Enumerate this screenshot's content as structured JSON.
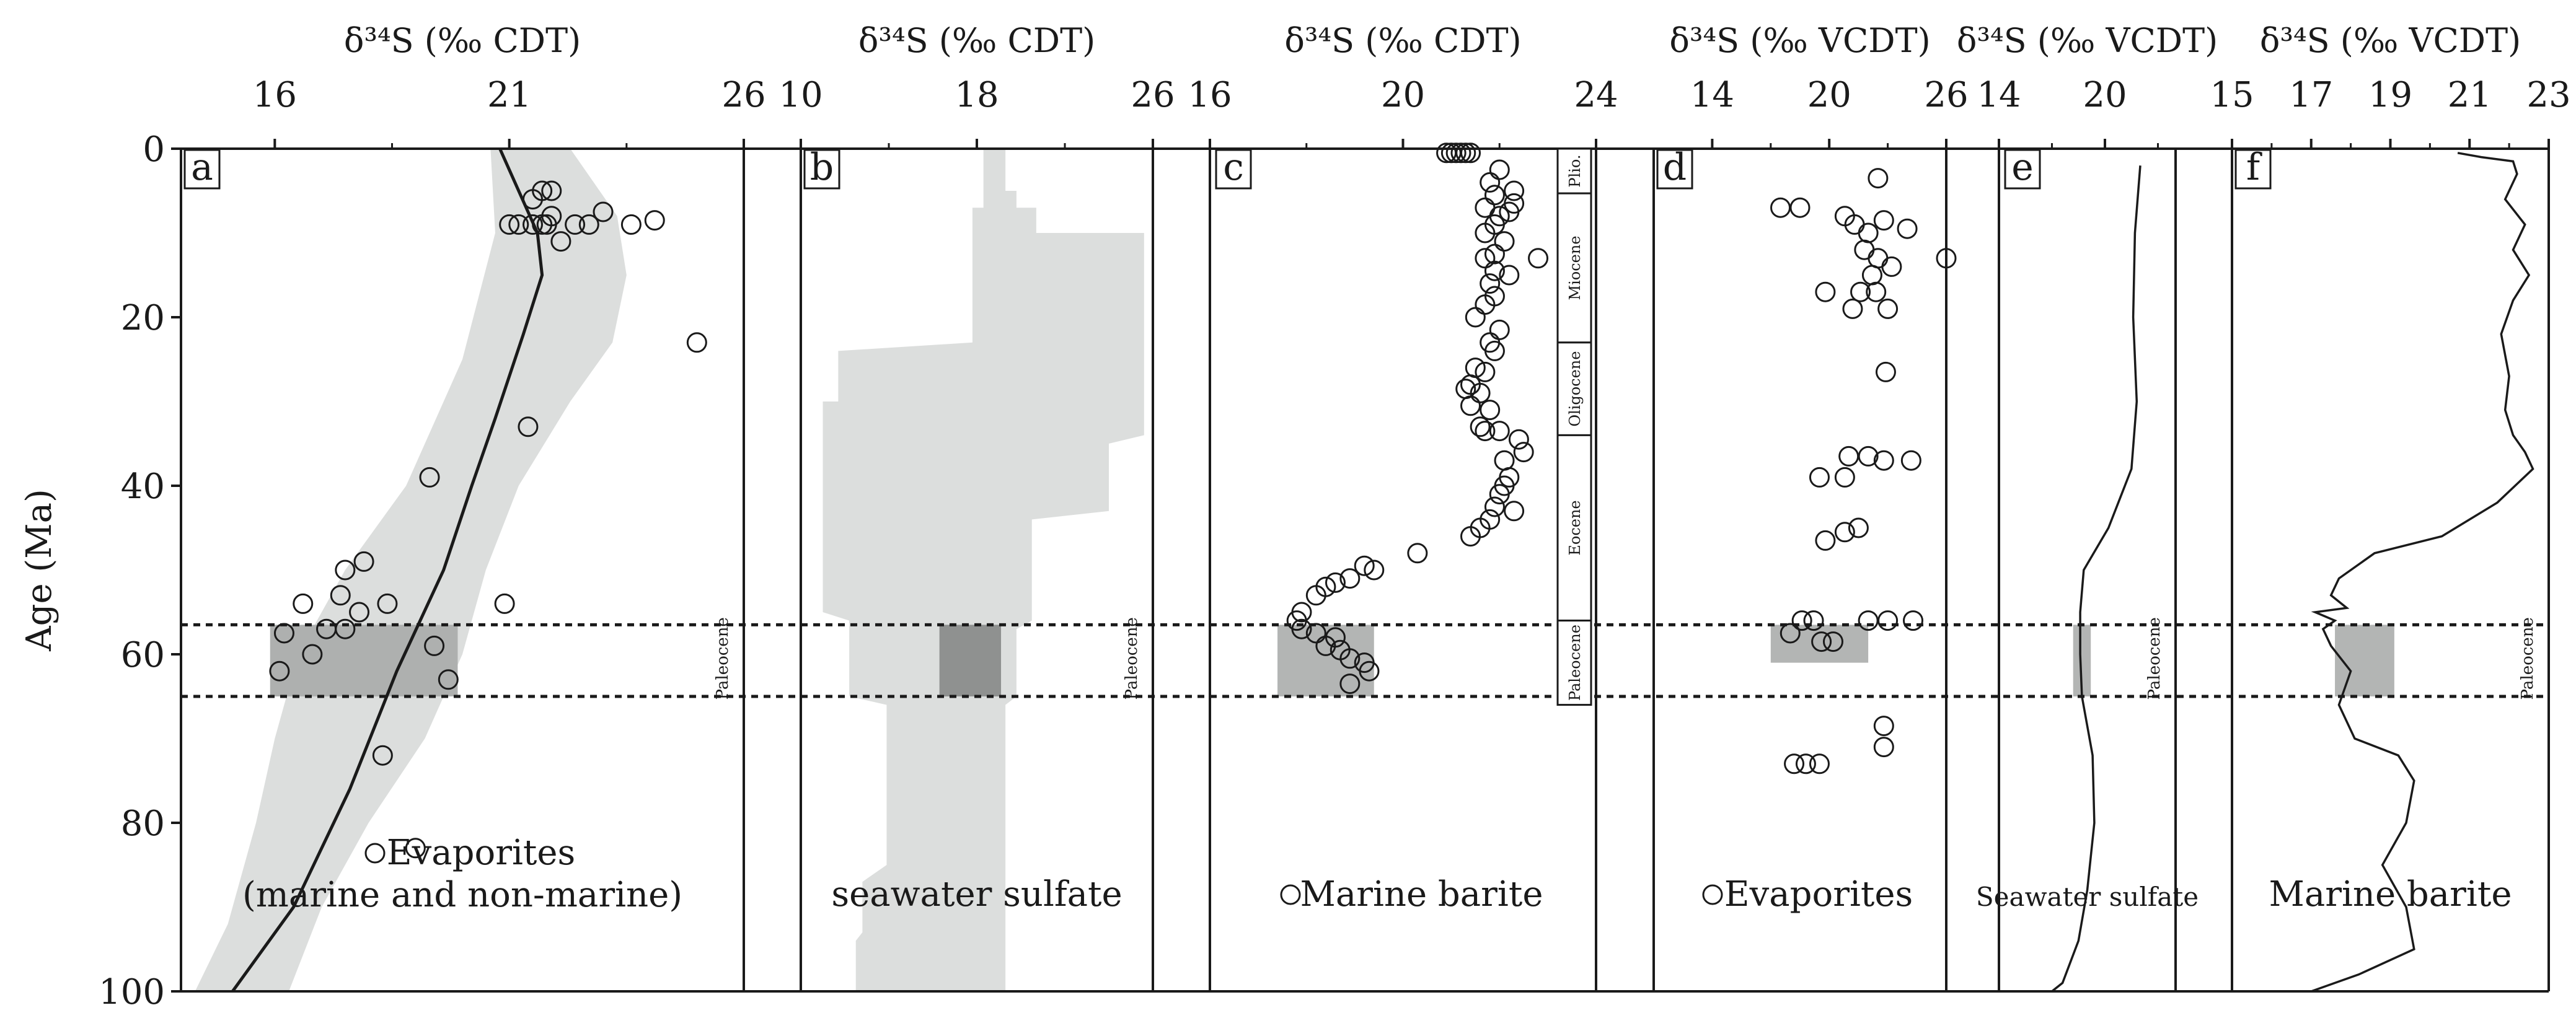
{
  "y_axis": {
    "label": "Age (Ma)",
    "ticks": [
      0,
      20,
      40,
      60,
      80,
      100
    ],
    "range": [
      0,
      100
    ],
    "inverted": true
  },
  "boundary_lines": [
    56.5,
    65
  ],
  "colors": {
    "envelope": "#dcdedd",
    "highlight_a": "#aeb0af",
    "highlight_b": "#8f9190",
    "highlight_cdef": "#b3b5b4",
    "line": "#1a1a1a",
    "dotted": "#1a1a1a"
  },
  "chart_data": [
    {
      "panel": "a",
      "type": "scatter",
      "header": "δ³⁴S (‰ CDT)",
      "xlim": [
        14,
        26
      ],
      "x_ticks": [
        16,
        21,
        26
      ],
      "caption_lines": [
        "Evaporites",
        "(marine and non-marine)"
      ],
      "caption_marker": "circle",
      "side_label": "Paleocene",
      "highlight": {
        "x": [
          15.9,
          19.9
        ],
        "y": [
          56.5,
          65
        ]
      },
      "envelope": {
        "left": [
          [
            20.6,
            0
          ],
          [
            20.7,
            10
          ],
          [
            20.0,
            25
          ],
          [
            18.8,
            40
          ],
          [
            17.5,
            50
          ],
          [
            16.5,
            60
          ],
          [
            16.0,
            70
          ],
          [
            15.6,
            80
          ],
          [
            15.0,
            92
          ],
          [
            14.3,
            100
          ]
        ],
        "right": [
          [
            22.3,
            0
          ],
          [
            23.3,
            8
          ],
          [
            23.5,
            15
          ],
          [
            23.2,
            23
          ],
          [
            22.3,
            30
          ],
          [
            21.2,
            40
          ],
          [
            20.5,
            50
          ],
          [
            20.0,
            60
          ],
          [
            19.2,
            70
          ],
          [
            18.0,
            80
          ],
          [
            17.0,
            90
          ],
          [
            16.3,
            100
          ]
        ]
      },
      "line": [
        [
          20.8,
          0
        ],
        [
          21.6,
          10
        ],
        [
          21.7,
          15
        ],
        [
          21.3,
          22
        ],
        [
          20.7,
          32
        ],
        [
          20.2,
          40
        ],
        [
          19.6,
          50
        ],
        [
          18.6,
          62
        ],
        [
          17.6,
          76
        ],
        [
          16.4,
          90
        ],
        [
          15.1,
          100
        ]
      ],
      "points": [
        [
          21.7,
          5
        ],
        [
          21.9,
          5
        ],
        [
          21.5,
          6
        ],
        [
          21.9,
          8
        ],
        [
          22.4,
          9
        ],
        [
          22.7,
          9
        ],
        [
          23.0,
          7.5
        ],
        [
          23.6,
          9
        ],
        [
          24.1,
          8.5
        ],
        [
          21.0,
          9
        ],
        [
          21.2,
          9
        ],
        [
          21.5,
          9
        ],
        [
          21.7,
          9
        ],
        [
          21.8,
          9
        ],
        [
          22.1,
          11
        ],
        [
          25.0,
          23
        ],
        [
          21.4,
          33
        ],
        [
          19.3,
          39
        ],
        [
          20.9,
          54
        ],
        [
          17.5,
          50
        ],
        [
          17.9,
          49
        ],
        [
          17.4,
          53
        ],
        [
          18.4,
          54
        ],
        [
          16.6,
          54
        ],
        [
          17.8,
          55
        ],
        [
          17.1,
          57
        ],
        [
          16.2,
          57.5
        ],
        [
          17.5,
          57
        ],
        [
          16.8,
          60
        ],
        [
          19.4,
          59
        ],
        [
          16.1,
          62
        ],
        [
          19.7,
          63
        ],
        [
          18.3,
          72
        ],
        [
          19.0,
          83
        ]
      ]
    },
    {
      "panel": "b",
      "type": "area",
      "header": "δ³⁴S (‰ CDT)",
      "xlim": [
        10,
        26
      ],
      "x_ticks": [
        10,
        18,
        26
      ],
      "caption_lines": [
        "seawater sulfate"
      ],
      "side_label": "Paleocene",
      "highlight": {
        "x": [
          16.3,
          19.1
        ],
        "y": [
          56.5,
          65
        ]
      },
      "envelope": {
        "left": [
          [
            18.3,
            0
          ],
          [
            18.3,
            5
          ],
          [
            18.3,
            7
          ],
          [
            17.8,
            7
          ],
          [
            17.8,
            9
          ],
          [
            17.8,
            23
          ],
          [
            11.7,
            24
          ],
          [
            11.7,
            30
          ],
          [
            11.0,
            30
          ],
          [
            11.0,
            55
          ],
          [
            12.2,
            56
          ],
          [
            12.2,
            65
          ],
          [
            13.9,
            66
          ],
          [
            13.9,
            85
          ],
          [
            12.8,
            87
          ],
          [
            12.8,
            93
          ],
          [
            12.5,
            94
          ],
          [
            12.5,
            100
          ]
        ],
        "right": [
          [
            19.3,
            0
          ],
          [
            19.3,
            5
          ],
          [
            19.8,
            5
          ],
          [
            19.8,
            7
          ],
          [
            20.7,
            7
          ],
          [
            20.7,
            10
          ],
          [
            25.6,
            10
          ],
          [
            25.6,
            34
          ],
          [
            24.0,
            35
          ],
          [
            24.0,
            43
          ],
          [
            20.5,
            44
          ],
          [
            20.5,
            53
          ],
          [
            20.5,
            56
          ],
          [
            19.8,
            57
          ],
          [
            19.8,
            65
          ],
          [
            19.3,
            66
          ],
          [
            19.3,
            100
          ]
        ]
      }
    },
    {
      "panel": "c",
      "type": "scatter",
      "header": "δ³⁴S (‰ CDT)",
      "xlim": [
        16,
        24
      ],
      "x_ticks": [
        16,
        20,
        24
      ],
      "caption_lines": [
        "Marine barite"
      ],
      "caption_marker": "circle",
      "epochs": [
        {
          "name": "Plio.",
          "top": 0,
          "bottom": 5.3
        },
        {
          "name": "Miocene",
          "top": 5.3,
          "bottom": 23
        },
        {
          "name": "Oligocene",
          "top": 23,
          "bottom": 34
        },
        {
          "name": "Eocene",
          "top": 34,
          "bottom": 56
        },
        {
          "name": "Paleocene",
          "top": 56,
          "bottom": 66
        }
      ],
      "highlight": {
        "x": [
          17.4,
          19.4
        ],
        "y": [
          56.5,
          65
        ]
      },
      "points": [
        [
          20.9,
          0.5
        ],
        [
          21.0,
          0.5
        ],
        [
          21.1,
          0.5
        ],
        [
          21.2,
          0.5
        ],
        [
          21.3,
          0.5
        ],
        [
          21.4,
          0.5
        ],
        [
          22.0,
          2.5
        ],
        [
          21.8,
          4
        ],
        [
          22.3,
          5
        ],
        [
          21.9,
          5.5
        ],
        [
          22.3,
          6.5
        ],
        [
          21.7,
          7
        ],
        [
          22.0,
          8
        ],
        [
          22.2,
          7.5
        ],
        [
          21.9,
          9
        ],
        [
          21.7,
          10
        ],
        [
          22.1,
          11
        ],
        [
          22.8,
          13
        ],
        [
          21.9,
          12.5
        ],
        [
          21.7,
          13
        ],
        [
          21.9,
          14.5
        ],
        [
          22.2,
          15
        ],
        [
          21.8,
          16
        ],
        [
          21.9,
          17.5
        ],
        [
          21.7,
          18.5
        ],
        [
          21.5,
          20
        ],
        [
          22.0,
          21.5
        ],
        [
          21.8,
          23
        ],
        [
          21.9,
          24
        ],
        [
          21.5,
          26
        ],
        [
          21.7,
          26.5
        ],
        [
          21.4,
          28
        ],
        [
          21.3,
          28.5
        ],
        [
          21.6,
          29
        ],
        [
          21.4,
          30.5
        ],
        [
          21.8,
          31
        ],
        [
          21.6,
          33
        ],
        [
          21.7,
          33.5
        ],
        [
          22.0,
          33.5
        ],
        [
          22.4,
          34.5
        ],
        [
          22.5,
          36
        ],
        [
          22.1,
          37
        ],
        [
          22.2,
          39
        ],
        [
          22.1,
          40
        ],
        [
          22.0,
          41
        ],
        [
          21.9,
          42.5
        ],
        [
          22.3,
          43
        ],
        [
          21.8,
          44
        ],
        [
          21.6,
          45
        ],
        [
          21.4,
          46
        ],
        [
          20.3,
          48
        ],
        [
          19.2,
          49.5
        ],
        [
          19.4,
          50
        ],
        [
          18.9,
          51
        ],
        [
          18.6,
          51.5
        ],
        [
          18.4,
          52
        ],
        [
          18.2,
          53
        ],
        [
          17.9,
          55
        ],
        [
          17.8,
          56
        ],
        [
          17.9,
          57
        ],
        [
          18.2,
          57.5
        ],
        [
          18.6,
          58
        ],
        [
          18.4,
          59
        ],
        [
          18.7,
          59.5
        ],
        [
          18.9,
          60.5
        ],
        [
          19.2,
          61
        ],
        [
          19.3,
          62
        ],
        [
          18.9,
          63.5
        ]
      ]
    },
    {
      "panel": "d",
      "type": "scatter",
      "header": "δ³⁴S (‰ VCDT)",
      "xlim": [
        11,
        26
      ],
      "x_ticks": [
        14,
        20,
        26
      ],
      "caption_lines": [
        "Evaporites"
      ],
      "caption_marker": "circle",
      "highlight": {
        "x": [
          17.0,
          22.0
        ],
        "y": [
          56.5,
          61
        ]
      },
      "points": [
        [
          22.5,
          3.5
        ],
        [
          17.5,
          7
        ],
        [
          18.5,
          7
        ],
        [
          20.8,
          8
        ],
        [
          22.8,
          8.5
        ],
        [
          21.3,
          9
        ],
        [
          24.0,
          9.5
        ],
        [
          22.0,
          10
        ],
        [
          21.8,
          12
        ],
        [
          22.5,
          13
        ],
        [
          23.2,
          14
        ],
        [
          22.2,
          15
        ],
        [
          21.6,
          17
        ],
        [
          22.4,
          17
        ],
        [
          19.8,
          17
        ],
        [
          23.0,
          19
        ],
        [
          21.2,
          19
        ],
        [
          26.0,
          13
        ],
        [
          22.9,
          26.5
        ],
        [
          21.0,
          36.5
        ],
        [
          22.0,
          36.5
        ],
        [
          22.8,
          37
        ],
        [
          24.2,
          37
        ],
        [
          19.5,
          39
        ],
        [
          20.8,
          39
        ],
        [
          21.5,
          45
        ],
        [
          20.8,
          45.5
        ],
        [
          19.8,
          46.5
        ],
        [
          18.6,
          56
        ],
        [
          19.2,
          56
        ],
        [
          22.0,
          56
        ],
        [
          23.0,
          56
        ],
        [
          24.3,
          56
        ],
        [
          18.0,
          57.5
        ],
        [
          19.6,
          58.5
        ],
        [
          20.2,
          58.5
        ],
        [
          22.8,
          68.5
        ],
        [
          22.8,
          71
        ],
        [
          18.2,
          73
        ],
        [
          18.8,
          73
        ],
        [
          19.5,
          73
        ]
      ]
    },
    {
      "panel": "e",
      "type": "line",
      "header": "δ³⁴S (‰ VCDT)",
      "xlim": [
        14,
        24
      ],
      "x_ticks": [
        14,
        20
      ],
      "caption_lines": [
        "Seawater sulfate"
      ],
      "side_label": "Paleocene",
      "highlight": {
        "x": [
          18.2,
          19.2
        ],
        "y": [
          56.5,
          65
        ]
      },
      "line": [
        [
          22.0,
          2
        ],
        [
          21.7,
          10
        ],
        [
          21.6,
          20
        ],
        [
          21.8,
          30
        ],
        [
          21.5,
          38
        ],
        [
          20.2,
          45
        ],
        [
          18.8,
          50
        ],
        [
          18.6,
          55
        ],
        [
          18.6,
          60
        ],
        [
          18.7,
          65
        ],
        [
          19.3,
          72
        ],
        [
          19.4,
          80
        ],
        [
          19.0,
          88
        ],
        [
          18.5,
          94
        ],
        [
          17.6,
          99
        ],
        [
          17.0,
          102
        ]
      ]
    },
    {
      "panel": "f",
      "type": "line",
      "header": "δ³⁴S (‰ VCDT)",
      "xlim": [
        15,
        23
      ],
      "x_ticks": [
        15,
        17,
        19,
        21,
        23
      ],
      "caption_lines": [
        "Marine barite"
      ],
      "side_label": "Paleocene",
      "highlight": {
        "x": [
          17.6,
          19.1
        ],
        "y": [
          56.5,
          65
        ]
      },
      "line": [
        [
          20.7,
          0.5
        ],
        [
          21.3,
          1
        ],
        [
          22.1,
          1.5
        ],
        [
          22.2,
          3
        ],
        [
          21.9,
          6
        ],
        [
          22.4,
          9
        ],
        [
          22.1,
          12
        ],
        [
          22.5,
          15
        ],
        [
          22.1,
          18
        ],
        [
          21.8,
          22
        ],
        [
          22.0,
          27
        ],
        [
          21.9,
          31
        ],
        [
          22.1,
          34
        ],
        [
          22.4,
          36
        ],
        [
          22.6,
          38
        ],
        [
          21.7,
          42
        ],
        [
          20.3,
          46
        ],
        [
          18.6,
          48
        ],
        [
          17.7,
          51
        ],
        [
          17.5,
          53
        ],
        [
          17.9,
          54.5
        ],
        [
          17.1,
          55
        ],
        [
          17.6,
          56
        ],
        [
          17.3,
          57
        ],
        [
          17.5,
          59
        ],
        [
          18.0,
          62
        ],
        [
          17.7,
          66
        ],
        [
          18.1,
          70
        ],
        [
          19.2,
          72
        ],
        [
          19.6,
          75
        ],
        [
          19.4,
          80
        ],
        [
          18.8,
          85
        ],
        [
          19.4,
          90
        ],
        [
          19.6,
          95
        ],
        [
          18.2,
          98
        ],
        [
          17.0,
          100
        ]
      ]
    }
  ]
}
